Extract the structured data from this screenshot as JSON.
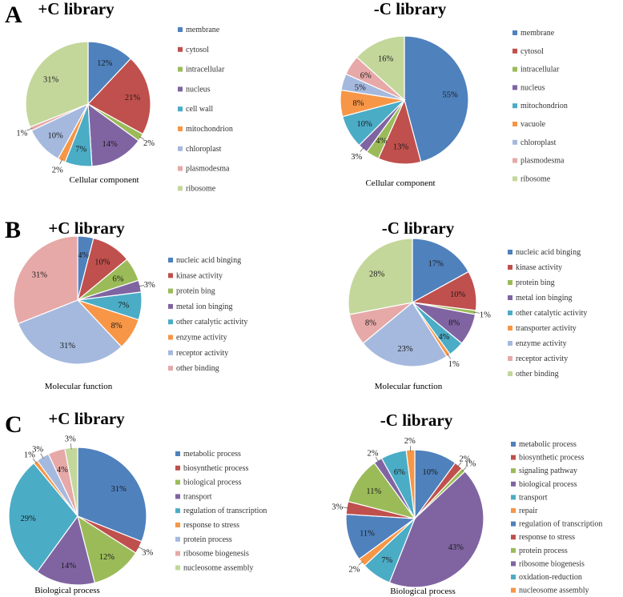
{
  "figure": {
    "panels": [
      "A",
      "B",
      "C"
    ]
  },
  "chart_data": [
    {
      "type": "pie",
      "panel": "A",
      "title": "+C library",
      "caption": "Cellular component",
      "slices": [
        {
          "label": "membrane",
          "value": 12,
          "color": "#4F81BD"
        },
        {
          "label": "cytosol",
          "value": 21,
          "color": "#C0504D"
        },
        {
          "label": "intracellular",
          "value": 2,
          "color": "#9BBB59"
        },
        {
          "label": "nucleus",
          "value": 14,
          "color": "#8064A2"
        },
        {
          "label": "cell wall",
          "value": 7,
          "color": "#4BACC6"
        },
        {
          "label": "mitochondrion",
          "value": 2,
          "color": "#F79646"
        },
        {
          "label": "chloroplast",
          "value": 10,
          "color": "#A5B9DE"
        },
        {
          "label": "plasmodesma",
          "value": 1,
          "color": "#E6A9A8"
        },
        {
          "label": "ribosome",
          "value": 31,
          "color": "#C4D79B"
        }
      ]
    },
    {
      "type": "pie",
      "panel": "A",
      "title": "-C library",
      "caption": "Cellular component",
      "slices": [
        {
          "label": "membrane",
          "value": 55,
          "color": "#4F81BD"
        },
        {
          "label": "cytosol",
          "value": 13,
          "color": "#C0504D"
        },
        {
          "label": "intracellular",
          "value": 4,
          "color": "#9BBB59"
        },
        {
          "label": "nucleus",
          "value": 3,
          "color": "#8064A2"
        },
        {
          "label": "mitochondrion",
          "value": 10,
          "color": "#4BACC6"
        },
        {
          "label": "vacuole",
          "value": 8,
          "color": "#F79646"
        },
        {
          "label": "chloroplast",
          "value": 5,
          "color": "#A5B9DE"
        },
        {
          "label": "plasmodesma",
          "value": 6,
          "color": "#E6A9A8"
        },
        {
          "label": "ribosome",
          "value": 16,
          "color": "#C4D79B"
        }
      ]
    },
    {
      "type": "pie",
      "panel": "B",
      "title": "+C library",
      "caption": "Molecular function",
      "slices": [
        {
          "label": "nucleic acid binging",
          "value": 4,
          "color": "#4F81BD"
        },
        {
          "label": "kinase activity",
          "value": 10,
          "color": "#C0504D"
        },
        {
          "label": "protein bing",
          "value": 6,
          "color": "#9BBB59"
        },
        {
          "label": "metal ion binging",
          "value": 3,
          "color": "#8064A2"
        },
        {
          "label": "other catalytic activity",
          "value": 7,
          "color": "#4BACC6"
        },
        {
          "label": "enzyme activity",
          "value": 8,
          "color": "#F79646"
        },
        {
          "label": "receptor activity",
          "value": 31,
          "color": "#A5B9DE"
        },
        {
          "label": "other binding",
          "value": 31,
          "color": "#E6A9A8"
        }
      ]
    },
    {
      "type": "pie",
      "panel": "B",
      "title": "-C library",
      "caption": "Molecular function",
      "slices": [
        {
          "label": "nucleic acid binging",
          "value": 17,
          "color": "#4F81BD"
        },
        {
          "label": "kinase activity",
          "value": 10,
          "color": "#C0504D"
        },
        {
          "label": "protein bing",
          "value": 1,
          "color": "#9BBB59"
        },
        {
          "label": "metal ion binging",
          "value": 8,
          "color": "#8064A2"
        },
        {
          "label": "other catalytic activity",
          "value": 4,
          "color": "#4BACC6"
        },
        {
          "label": "transporter activity",
          "value": 1,
          "color": "#F79646"
        },
        {
          "label": "enzyme activity",
          "value": 23,
          "color": "#A5B9DE"
        },
        {
          "label": "receptor activity",
          "value": 8,
          "color": "#E6A9A8"
        },
        {
          "label": "other binding",
          "value": 28,
          "color": "#C4D79B"
        }
      ]
    },
    {
      "type": "pie",
      "panel": "C",
      "title": "+C library",
      "caption": "Biological process",
      "slices": [
        {
          "label": "metabolic process",
          "value": 31,
          "color": "#4F81BD"
        },
        {
          "label": "biosynthetic process",
          "value": 3,
          "color": "#C0504D"
        },
        {
          "label": "biological process",
          "value": 12,
          "color": "#9BBB59"
        },
        {
          "label": "transport",
          "value": 14,
          "color": "#8064A2"
        },
        {
          "label": "regulation of transcription",
          "value": 29,
          "color": "#4BACC6"
        },
        {
          "label": "response to stress",
          "value": 1,
          "color": "#F79646"
        },
        {
          "label": "protein process",
          "value": 3,
          "color": "#A5B9DE"
        },
        {
          "label": "ribosome biogenesis",
          "value": 4,
          "color": "#E6A9A8"
        },
        {
          "label": "nucleosome assembly",
          "value": 3,
          "color": "#C4D79B"
        }
      ]
    },
    {
      "type": "pie",
      "panel": "C",
      "title": "-C library",
      "caption": "Biological process",
      "slices": [
        {
          "label": "metabolic process",
          "value": 10,
          "color": "#4F81BD"
        },
        {
          "label": "biosynthetic process",
          "value": 2,
          "color": "#C0504D"
        },
        {
          "label": "signaling pathway",
          "value": 1,
          "color": "#9BBB59"
        },
        {
          "label": "biological process",
          "value": 43,
          "color": "#8064A2"
        },
        {
          "label": "transport",
          "value": 7,
          "color": "#4BACC6"
        },
        {
          "label": "repair",
          "value": 2,
          "color": "#F79646"
        },
        {
          "label": "regulation of transcription",
          "value": 11,
          "color": "#4F81BD"
        },
        {
          "label": "response to stress",
          "value": 3,
          "color": "#C0504D"
        },
        {
          "label": "protein process",
          "value": 11,
          "color": "#9BBB59"
        },
        {
          "label": "ribosome biogenesis",
          "value": 2,
          "color": "#8064A2"
        },
        {
          "label": "oxidation-reduction",
          "value": 6,
          "color": "#4BACC6"
        },
        {
          "label": "nucleosome assembly",
          "value": 2,
          "color": "#F79646"
        }
      ]
    }
  ]
}
